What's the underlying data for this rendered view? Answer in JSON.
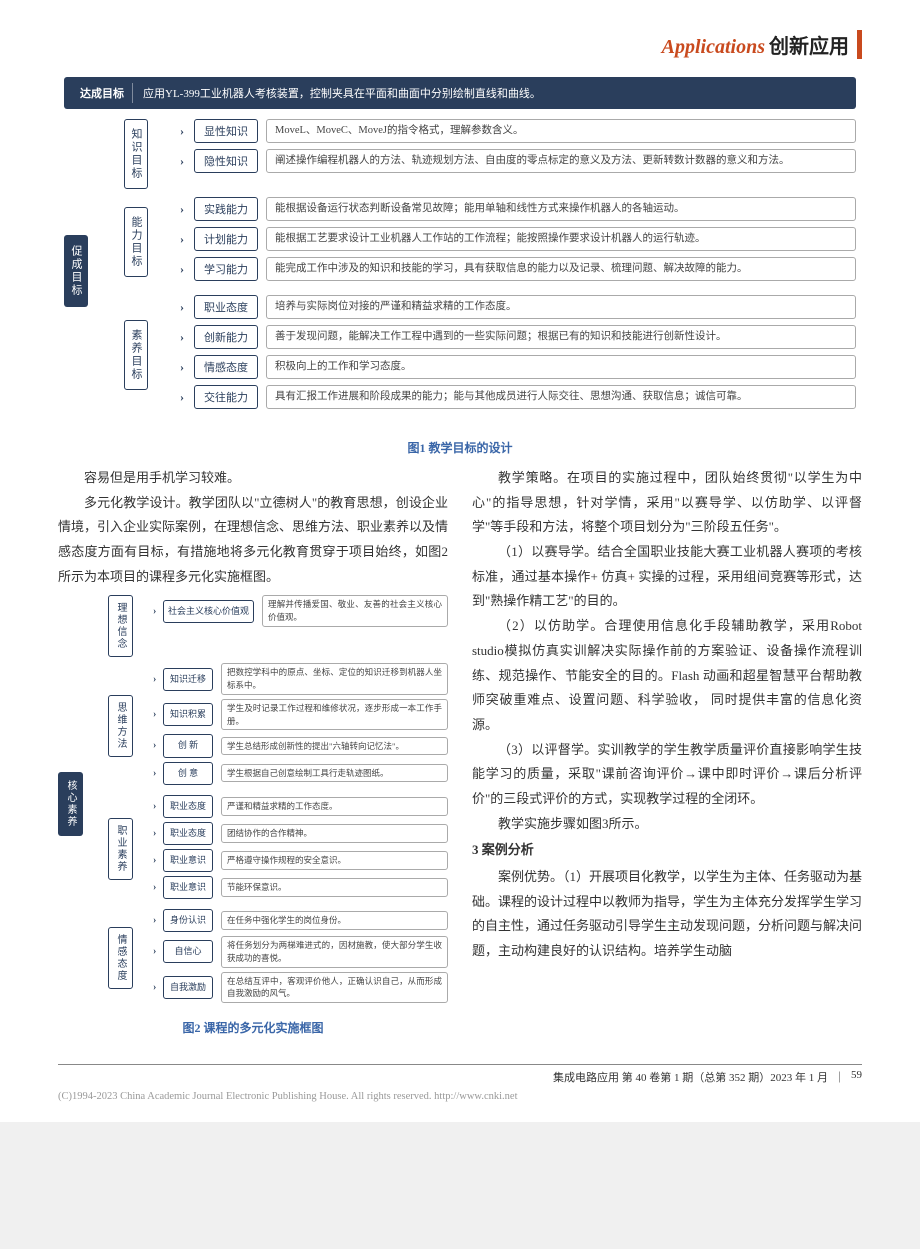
{
  "header": {
    "en": "Applications",
    "cn": "创新应用"
  },
  "colors": {
    "accent": "#c94a1e",
    "node_dark": "#2a3e5c",
    "caption": "#3a66a8",
    "border_light": "#aaaaaa",
    "copyright": "#999999"
  },
  "fig1": {
    "goal_tag": "达成目标",
    "goal_text": "应用YL-399工业机器人考核装置，控制夹具在平面和曲面中分别绘制直线和曲线。",
    "root": "促成目标",
    "caption": "图1  教学目标的设计",
    "groups": [
      {
        "label": "知识目标",
        "leaves": [
          {
            "label": "显性知识",
            "desc": "MoveL、MoveC、MoveJ的指令格式，理解参数含义。"
          },
          {
            "label": "隐性知识",
            "desc": "阐述操作编程机器人的方法、轨迹规划方法、自由度的零点标定的意义及方法、更新转数计数器的意义和方法。"
          }
        ]
      },
      {
        "label": "能力目标",
        "leaves": [
          {
            "label": "实践能力",
            "desc": "能根据设备运行状态判断设备常见故障；能用单轴和线性方式来操作机器人的各轴运动。"
          },
          {
            "label": "计划能力",
            "desc": "能根据工艺要求设计工业机器人工作站的工作流程；能按照操作要求设计机器人的运行轨迹。"
          },
          {
            "label": "学习能力",
            "desc": "能完成工作中涉及的知识和技能的学习，具有获取信息的能力以及记录、梳理问题、解决故障的能力。"
          }
        ]
      },
      {
        "label": "素养目标",
        "leaves": [
          {
            "label": "职业态度",
            "desc": "培养与实际岗位对接的严谨和精益求精的工作态度。"
          },
          {
            "label": "创新能力",
            "desc": "善于发现问题，能解决工作工程中遇到的一些实际问题；根据已有的知识和技能进行创新性设计。"
          },
          {
            "label": "情感态度",
            "desc": "积极向上的工作和学习态度。"
          },
          {
            "label": "交往能力",
            "desc": "具有汇报工作进展和阶段成果的能力；能与其他成员进行人际交往、思想沟通、获取信息；诚信可靠。"
          }
        ]
      }
    ]
  },
  "fig2": {
    "root": "核心素养",
    "caption": "图2  课程的多元化实施框图",
    "groups": [
      {
        "label": "理想信念",
        "leaves": [
          {
            "label": "社会主义核心价值观",
            "desc": "理解并传播爱国、敬业、友善的社会主义核心价值观。"
          }
        ]
      },
      {
        "label": "思维方法",
        "leaves": [
          {
            "label": "知识迁移",
            "desc": "把数控学科中的原点、坐标、定位的知识迁移到机器人坐标系中。"
          },
          {
            "label": "知识积累",
            "desc": "学生及时记录工作过程和维修状况，逐步形成一本工作手册。"
          },
          {
            "label": "创  新",
            "desc": "学生总结形成创新性的提出\"六轴转向记忆法\"。"
          },
          {
            "label": "创  意",
            "desc": "学生根据自己创意绘制工具行走轨迹图纸。"
          }
        ]
      },
      {
        "label": "职业素养",
        "leaves": [
          {
            "label": "职业态度",
            "desc": "严谨和精益求精的工作态度。"
          },
          {
            "label": "职业态度",
            "desc": "团结协作的合作精神。"
          },
          {
            "label": "职业意识",
            "desc": "严格遵守操作规程的安全意识。"
          },
          {
            "label": "职业意识",
            "desc": "节能环保意识。"
          }
        ]
      },
      {
        "label": "情感态度",
        "leaves": [
          {
            "label": "身份认识",
            "desc": "在任务中强化学生的岗位身份。"
          },
          {
            "label": "自信心",
            "desc": "将任务划分为两梯难进式的，因材施教，使大部分学生收获成功的喜悦。"
          },
          {
            "label": "自我激励",
            "desc": "在总结互评中，客观评价他人，正确认识自己，从而形成自我激励的风气。"
          }
        ]
      }
    ]
  },
  "body_left": {
    "p1": "容易但是用手机学习较难。",
    "p2": "多元化教学设计。教学团队以\"立德树人\"的教育思想，创设企业情境，引入企业实际案例，在理想信念、思维方法、职业素养以及情感态度方面有目标，有措施地将多元化教育贯穿于项目始终，如图2所示为本项目的课程多元化实施框图。"
  },
  "body_right": {
    "p1": "教学策略。在项目的实施过程中，团队始终贯彻\"以学生为中心\"的指导思想，针对学情，采用\"以赛导学、以仿助学、以评督学\"等手段和方法，将整个项目划分为\"三阶段五任务\"。",
    "p2": "（1）以赛导学。结合全国职业技能大赛工业机器人赛项的考核标准，通过基本操作+ 仿真+ 实操的过程，采用组间竞赛等形式，达到\"熟操作精工艺\"的目的。",
    "p3": "（2）以仿助学。合理使用信息化手段辅助教学，采用Robot studio模拟仿真实训解决实际操作前的方案验证、设备操作流程训练、规范操作、节能安全的目的。Flash 动画和超星智慧平台帮助教师突破重难点、设置问题、科学验收， 同时提供丰富的信息化资源。",
    "p4": "（3）以评督学。实训教学的学生教学质量评价直接影响学生技能学习的质量，采取\"课前咨询评价→课中即时评价→课后分析评价\"的三段式评价的方式，实现教学过程的全闭环。",
    "p5": "教学实施步骤如图3所示。",
    "h3": "3  案例分析",
    "p6": "案例优势。（1）开展项目化教学，以学生为主体、任务驱动为基础。课程的设计过程中以教师为指导，学生为主体充分发挥学生学习的自主性，通过任务驱动引导学生主动发现问题，分析问题与解决问题，主动构建良好的认识结构。培养学生动脑"
  },
  "footer": {
    "journal": "集成电路应用  第 40 卷第 1 期（总第 352 期）2023 年 1 月",
    "page": "59",
    "copyright": "(C)1994-2023 China Academic Journal Electronic Publishing House. All rights reserved.    http://www.cnki.net"
  }
}
